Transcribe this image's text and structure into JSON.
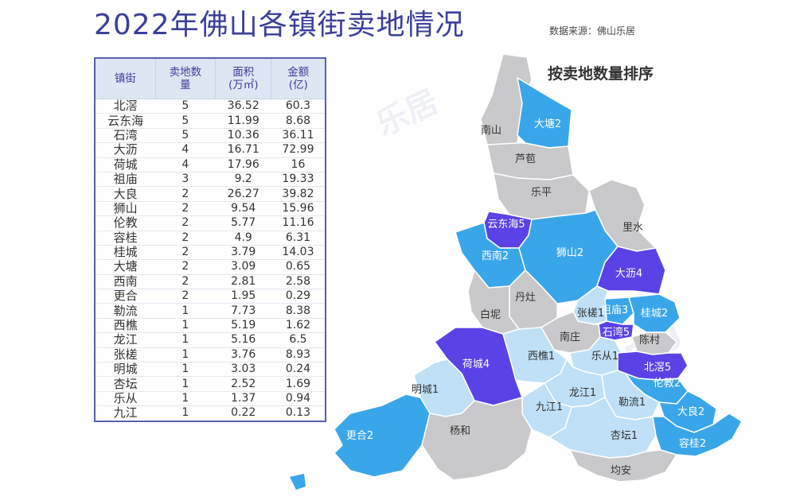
{
  "title": "2022年佛山各镇街卖地情况",
  "source": "数据来源：佛山乐居",
  "sort_label": "按卖地数量排序",
  "chart_data": {
    "type": "table",
    "columns": [
      "镇街",
      "卖地数量",
      "面积（万㎡）",
      "金额（亿）"
    ],
    "header": {
      "c0": "镇街",
      "c1a": "卖地数",
      "c1b": "量",
      "c2a": "面积",
      "c2b": "(万㎡)",
      "c3a": "金额",
      "c3b": "(亿)"
    },
    "rows": [
      {
        "name": "北滘",
        "count": "5",
        "area": "36.52",
        "amount": "60.3"
      },
      {
        "name": "云东海",
        "count": "5",
        "area": "11.99",
        "amount": "8.68"
      },
      {
        "name": "石湾",
        "count": "5",
        "area": "10.36",
        "amount": "36.11"
      },
      {
        "name": "大沥",
        "count": "4",
        "area": "16.71",
        "amount": "72.99"
      },
      {
        "name": "荷城",
        "count": "4",
        "area": "17.96",
        "amount": "16"
      },
      {
        "name": "祖庙",
        "count": "3",
        "area": "9.2",
        "amount": "19.33"
      },
      {
        "name": "大良",
        "count": "2",
        "area": "26.27",
        "amount": "39.82"
      },
      {
        "name": "狮山",
        "count": "2",
        "area": "9.54",
        "amount": "15.96"
      },
      {
        "name": "伦教",
        "count": "2",
        "area": "5.77",
        "amount": "11.16"
      },
      {
        "name": "容桂",
        "count": "2",
        "area": "4.9",
        "amount": "6.31"
      },
      {
        "name": "桂城",
        "count": "2",
        "area": "3.79",
        "amount": "14.03"
      },
      {
        "name": "大塘",
        "count": "2",
        "area": "3.09",
        "amount": "0.65"
      },
      {
        "name": "西南",
        "count": "2",
        "area": "2.81",
        "amount": "2.58"
      },
      {
        "name": "更合",
        "count": "2",
        "area": "1.95",
        "amount": "0.29"
      },
      {
        "name": "勒流",
        "count": "1",
        "area": "7.73",
        "amount": "8.38"
      },
      {
        "name": "西樵",
        "count": "1",
        "area": "5.19",
        "amount": "1.62"
      },
      {
        "name": "龙江",
        "count": "1",
        "area": "5.16",
        "amount": "6.5"
      },
      {
        "name": "张槎",
        "count": "1",
        "area": "3.76",
        "amount": "8.93"
      },
      {
        "name": "明城",
        "count": "1",
        "area": "3.03",
        "amount": "0.24"
      },
      {
        "name": "杏坛",
        "count": "1",
        "area": "2.52",
        "amount": "1.69"
      },
      {
        "name": "乐从",
        "count": "1",
        "area": "1.37",
        "amount": "0.94"
      },
      {
        "name": "九江",
        "count": "1",
        "area": "0.22",
        "amount": "0.13"
      }
    ]
  },
  "colors": {
    "count_5_4": "#5a43e6",
    "count_2_3": "#3aa6ea",
    "count_1": "#bfe0f6",
    "count_0": "#c9c9cc",
    "title": "#3b3f9a",
    "table_border": "#5a5fb0"
  },
  "map": {
    "regions": [
      {
        "key": "nanshan",
        "label": "南山",
        "count": 0
      },
      {
        "key": "datang",
        "label": "大塘2",
        "count": 2
      },
      {
        "key": "lubao",
        "label": "芦苞",
        "count": 0
      },
      {
        "key": "leping",
        "label": "乐平",
        "count": 0
      },
      {
        "key": "yundonghai",
        "label": "云东海5",
        "count": 5
      },
      {
        "key": "lishui",
        "label": "里水",
        "count": 0
      },
      {
        "key": "xinan",
        "label": "西南2",
        "count": 2
      },
      {
        "key": "shishan",
        "label": "狮山2",
        "count": 2
      },
      {
        "key": "dali",
        "label": "大沥4",
        "count": 4
      },
      {
        "key": "danzao",
        "label": "丹灶",
        "count": 0
      },
      {
        "key": "baini",
        "label": "白坭",
        "count": 0
      },
      {
        "key": "zumiao",
        "label": "祖庙3",
        "count": 3
      },
      {
        "key": "zhangcha",
        "label": "张槎1",
        "count": 1
      },
      {
        "key": "guicheng",
        "label": "桂城2",
        "count": 2
      },
      {
        "key": "shiwan",
        "label": "石湾5",
        "count": 5
      },
      {
        "key": "nanzhuang",
        "label": "南庄",
        "count": 0
      },
      {
        "key": "chencun",
        "label": "陈村",
        "count": 0
      },
      {
        "key": "hecheng",
        "label": "荷城4",
        "count": 4
      },
      {
        "key": "xiqiao",
        "label": "西樵1",
        "count": 1
      },
      {
        "key": "lecong",
        "label": "乐从1",
        "count": 1
      },
      {
        "key": "beijiao",
        "label": "北滘5",
        "count": 5
      },
      {
        "key": "mingcheng",
        "label": "明城1",
        "count": 1
      },
      {
        "key": "longjiang",
        "label": "龙江1",
        "count": 1
      },
      {
        "key": "lunjiao",
        "label": "伦教2",
        "count": 2
      },
      {
        "key": "jiujiang",
        "label": "九江1",
        "count": 1
      },
      {
        "key": "leliu",
        "label": "勒流1",
        "count": 1
      },
      {
        "key": "daliang",
        "label": "大良2",
        "count": 2
      },
      {
        "key": "genghe",
        "label": "更合2",
        "count": 2
      },
      {
        "key": "yanghe",
        "label": "杨和",
        "count": 0
      },
      {
        "key": "xingtan",
        "label": "杏坛1",
        "count": 1
      },
      {
        "key": "ronggui",
        "label": "容桂2",
        "count": 2
      },
      {
        "key": "junan",
        "label": "均安",
        "count": 0
      }
    ]
  }
}
